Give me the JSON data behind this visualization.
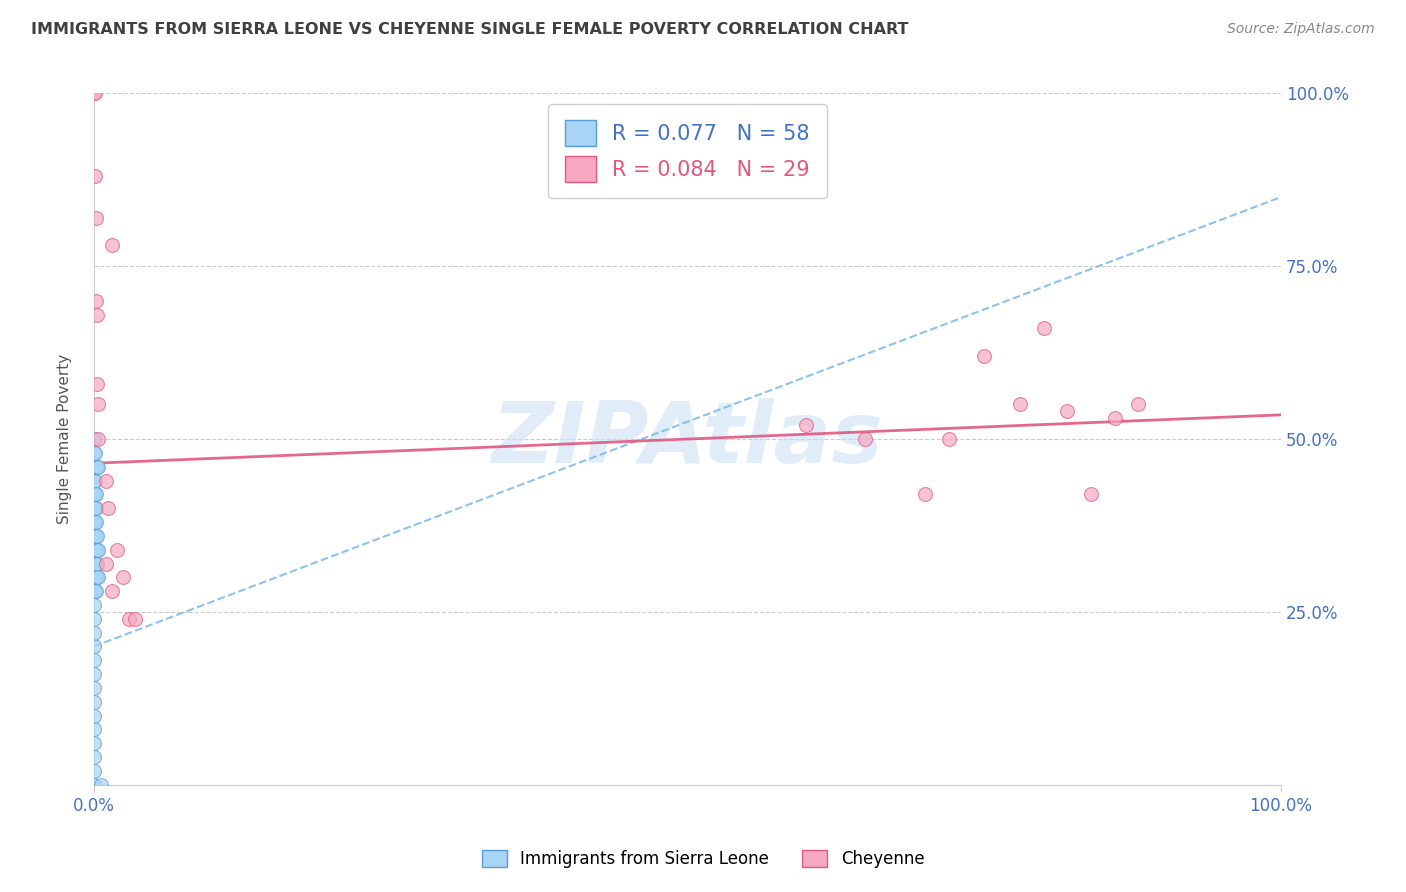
{
  "title": "IMMIGRANTS FROM SIERRA LEONE VS CHEYENNE SINGLE FEMALE POVERTY CORRELATION CHART",
  "source": "Source: ZipAtlas.com",
  "ylabel": "Single Female Poverty",
  "legend_label1": "Immigrants from Sierra Leone",
  "legend_label2": "Cheyenne",
  "r1": 0.077,
  "n1": 58,
  "r2": 0.084,
  "n2": 29,
  "blue_face": "#a8d4f5",
  "blue_edge": "#5b9bd5",
  "pink_face": "#f5a8c0",
  "pink_edge": "#e05880",
  "blue_line_color": "#7ab8e8",
  "pink_line_color": "#e05880",
  "axis_color": "#4472c4",
  "title_color": "#404040",
  "grid_color": "#cccccc",
  "watermark_color": "#c8dff5",
  "blue_points_x": [
    0.0,
    0.0,
    0.0,
    0.0,
    0.0,
    0.0,
    0.0,
    0.0,
    0.0,
    0.0,
    0.0,
    0.0,
    0.0,
    0.0,
    0.0,
    0.0,
    0.0,
    0.0,
    0.0,
    0.0,
    0.0,
    0.0,
    0.0,
    0.0,
    0.0,
    0.0,
    0.0,
    0.0,
    0.0,
    0.0,
    0.001,
    0.001,
    0.001,
    0.001,
    0.001,
    0.001,
    0.001,
    0.001,
    0.001,
    0.001,
    0.002,
    0.002,
    0.002,
    0.002,
    0.002,
    0.002,
    0.002,
    0.002,
    0.002,
    0.003,
    0.003,
    0.003,
    0.003,
    0.003,
    0.004,
    0.004,
    0.004,
    0.006
  ],
  "blue_points_y": [
    0.0,
    0.02,
    0.04,
    0.06,
    0.08,
    0.1,
    0.12,
    0.14,
    0.16,
    0.18,
    0.2,
    0.22,
    0.24,
    0.26,
    0.28,
    0.3,
    0.32,
    0.34,
    0.36,
    0.38,
    0.4,
    0.42,
    0.44,
    0.46,
    0.48,
    0.5,
    0.36,
    0.38,
    0.4,
    0.42,
    0.28,
    0.3,
    0.32,
    0.34,
    0.36,
    0.38,
    0.4,
    0.42,
    0.44,
    0.48,
    0.28,
    0.3,
    0.32,
    0.34,
    0.36,
    0.38,
    0.4,
    0.42,
    0.46,
    0.3,
    0.32,
    0.34,
    0.36,
    0.46,
    0.3,
    0.34,
    0.46,
    0.0
  ],
  "pink_points_x": [
    0.0,
    0.001,
    0.001,
    0.002,
    0.002,
    0.003,
    0.003,
    0.004,
    0.004,
    0.01,
    0.012,
    0.015,
    0.03,
    0.035,
    0.6,
    0.65,
    0.7,
    0.72,
    0.75,
    0.78,
    0.8,
    0.82,
    0.84,
    0.86,
    0.88,
    0.01,
    0.015,
    0.02,
    0.025
  ],
  "pink_points_y": [
    1.0,
    1.0,
    0.88,
    0.82,
    0.7,
    0.68,
    0.58,
    0.55,
    0.5,
    0.44,
    0.4,
    0.78,
    0.24,
    0.24,
    0.52,
    0.5,
    0.42,
    0.5,
    0.62,
    0.55,
    0.66,
    0.54,
    0.42,
    0.53,
    0.55,
    0.32,
    0.28,
    0.34,
    0.3
  ],
  "blue_line_x": [
    0.0,
    1.0
  ],
  "blue_line_y": [
    0.2,
    0.85
  ],
  "pink_line_x": [
    0.0,
    1.0
  ],
  "pink_line_y": [
    0.465,
    0.535
  ],
  "xlim": [
    0.0,
    1.0
  ],
  "ylim": [
    0.0,
    1.0
  ],
  "yticks": [
    0.0,
    0.25,
    0.5,
    0.75,
    1.0
  ],
  "ytick_labels_right": [
    "",
    "25.0%",
    "50.0%",
    "75.0%",
    "100.0%"
  ],
  "xtick_positions": [
    0.0,
    1.0
  ],
  "xtick_labels": [
    "0.0%",
    "100.0%"
  ],
  "marker_size": 100
}
